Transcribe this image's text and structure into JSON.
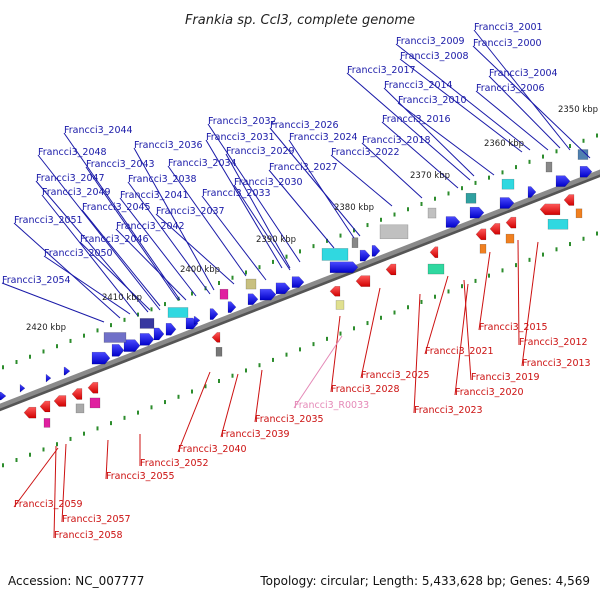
{
  "title": "Frankia sp. CcI3, complete genome",
  "footer": {
    "accession": "Accession: NC_007777",
    "topology": "Topology: circular; Length: 5,433,628 bp; Genes: 4,569"
  },
  "colors": {
    "forward_label": "#1a1aa8",
    "reverse_label": "#cc1111",
    "rna_label": "#e58ab8",
    "backbone": "#8a8a8a",
    "tick": "#2c8c2c"
  },
  "kbp_labels": [
    {
      "text": "2350 kbp"
    },
    {
      "text": "2360 kbp"
    },
    {
      "text": "2370 kbp"
    },
    {
      "text": "2380 kbp"
    },
    {
      "text": "2390 kbp"
    },
    {
      "text": "2400 kbp"
    },
    {
      "text": "2410 kbp"
    },
    {
      "text": "2420 kbp"
    }
  ],
  "forward_genes": [
    "Francci3_2001",
    "Francci3_2000",
    "Francci3_2009",
    "Francci3_2008",
    "Francci3_2004",
    "Francci3_2017",
    "Francci3_2006",
    "Francci3_2014",
    "Francci3_2010",
    "Francci3_2016",
    "Francci3_2044",
    "Francci3_2032",
    "Francci3_2026",
    "Francci3_2018",
    "Francci3_2036",
    "Francci3_2031",
    "Francci3_2024",
    "Francci3_2048",
    "Francci3_2029",
    "Francci3_2022",
    "Francci3_2043",
    "Francci3_2034",
    "Francci3_2027",
    "Francci3_2047",
    "Francci3_2038",
    "Francci3_2030",
    "Francci3_2049",
    "Francci3_2041",
    "Francci3_2033",
    "Francci3_2045",
    "Francci3_2037",
    "Francci3_2051",
    "Francci3_2042",
    "Francci3_2046",
    "Francci3_2050",
    "Francci3_2054"
  ],
  "reverse_genes": [
    "Francci3_2015",
    "Francci3_2012",
    "Francci3_2021",
    "Francci3_2013",
    "Francci3_2025",
    "Francci3_2019",
    "Francci3_2028",
    "Francci3_2020",
    "Francci3_2023",
    "Francci3_2035",
    "Francci3_2039",
    "Francci3_2040",
    "Francci3_2052",
    "Francci3_2055",
    "Francci3_2059",
    "Francci3_2057",
    "Francci3_2058"
  ],
  "rna_genes": [
    "Francci3_R0033"
  ]
}
